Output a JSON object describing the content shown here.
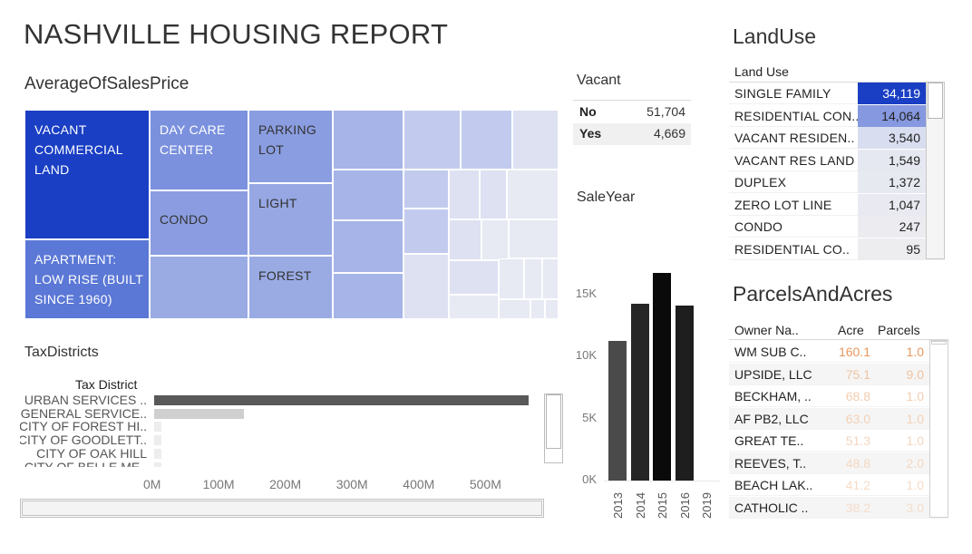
{
  "title": "NASHVILLE HOUSING REPORT",
  "average_sales_price": {
    "title": "AverageOfSalesPrice",
    "labeled_cells": [
      {
        "label": "VACANT\nCOMMERCIAL\nLAND",
        "color": "#1a3fc4",
        "text_color": "#ffffff"
      },
      {
        "label": "APARTMENT:\nLOW RISE (BUILT\nSINCE 1960)",
        "color": "#5b78d6",
        "text_color": "#ffffff"
      },
      {
        "label": "DAY CARE\nCENTER",
        "color": "#7b91de",
        "text_color": "#ffffff"
      },
      {
        "label": "CONDO",
        "color": "#8b9de0",
        "text_color": "#333333"
      },
      {
        "label": "PARKING\nLOT",
        "color": "#8a9de0",
        "text_color": "#333333"
      },
      {
        "label": "LIGHT",
        "color": "#96a7e3",
        "text_color": "#333333"
      },
      {
        "label": "FOREST",
        "color": "#9aabe4",
        "text_color": "#333333"
      }
    ],
    "scale_colors": {
      "dark": "#a6b4e8",
      "mid": "#c2cbee",
      "light": "#dde1f2",
      "lightest": "#e7e9f3"
    }
  },
  "vacant": {
    "title": "Vacant",
    "rows": [
      {
        "label": "No",
        "value": "51,704"
      },
      {
        "label": "Yes",
        "value": "4,669"
      }
    ]
  },
  "sale_year": {
    "title": "SaleYear",
    "y_ticks": [
      "15K",
      "10K",
      "5K",
      "0K"
    ],
    "chart_data": {
      "type": "bar",
      "categories": [
        "2013",
        "2014",
        "2015",
        "2016",
        "2019"
      ],
      "values": [
        11300,
        14250,
        16750,
        14150,
        5
      ],
      "ylim": [
        0,
        18000
      ],
      "colors": [
        "#4a4a4a",
        "#262626",
        "#0a0a0a",
        "#1e1e1e",
        "#555555"
      ]
    }
  },
  "land_use": {
    "title": "LandUse",
    "header": "Land Use",
    "rows": [
      {
        "label": "SINGLE FAMILY",
        "value": "34,119",
        "bg": "#1a3fc4",
        "fg": "#ffffff"
      },
      {
        "label": "RESIDENTIAL CON..",
        "value": "14,064",
        "bg": "#8698df",
        "fg": "#222222"
      },
      {
        "label": "VACANT RESIDEN..",
        "value": "3,540",
        "bg": "#d9ddf0",
        "fg": "#222222"
      },
      {
        "label": "VACANT RES LAND",
        "value": "1,549",
        "bg": "#e6e8f1",
        "fg": "#222222"
      },
      {
        "label": "DUPLEX",
        "value": "1,372",
        "bg": "#e7e9f1",
        "fg": "#222222"
      },
      {
        "label": "ZERO LOT LINE",
        "value": "1,047",
        "bg": "#e9eaf1",
        "fg": "#222222"
      },
      {
        "label": "CONDO",
        "value": "247",
        "bg": "#ececf0",
        "fg": "#222222"
      },
      {
        "label": "RESIDENTIAL CO..",
        "value": "95",
        "bg": "#ededf0",
        "fg": "#222222"
      }
    ]
  },
  "parcels_and_acres": {
    "title": "ParcelsAndAcres",
    "headers": {
      "owner": "Owner Na..",
      "acre": "Acre",
      "parcels": "Parcels"
    },
    "rows": [
      {
        "owner": "WM SUB C..",
        "acre": "160.1",
        "parcels": "1.0",
        "acre_color": "#e8985e",
        "parcels_color": "#e8985e"
      },
      {
        "owner": "UPSIDE, LLC",
        "acre": "75.1",
        "parcels": "9.0",
        "acre_color": "#f0c3a0",
        "parcels_color": "#f0c3a0"
      },
      {
        "owner": "BECKHAM, ..",
        "acre": "68.8",
        "parcels": "1.0",
        "acre_color": "#f2cdb0",
        "parcels_color": "#f2cdb0"
      },
      {
        "owner": "AF PB2, LLC",
        "acre": "63.0",
        "parcels": "1.0",
        "acre_color": "#f3d1b6",
        "parcels_color": "#f3d1b6"
      },
      {
        "owner": "GREAT TE..",
        "acre": "51.3",
        "parcels": "1.0",
        "acre_color": "#f4d6bf",
        "parcels_color": "#f4d6bf"
      },
      {
        "owner": "REEVES, T..",
        "acre": "48.8",
        "parcels": "2.0",
        "acre_color": "#f4d8c2",
        "parcels_color": "#f4d8c2"
      },
      {
        "owner": "BEACH LAK..",
        "acre": "41.2",
        "parcels": "1.0",
        "acre_color": "#f5dcc8",
        "parcels_color": "#f5dcc8"
      },
      {
        "owner": "CATHOLIC ..",
        "acre": "38.2",
        "parcels": "3.0",
        "acre_color": "#f5ddca",
        "parcels_color": "#f5ddca"
      }
    ]
  },
  "tax_districts": {
    "title": "TaxDistricts",
    "header": "Tax District",
    "x_ticks": [
      "0M",
      "100M",
      "200M",
      "300M",
      "400M",
      "500M"
    ],
    "chart_data": {
      "type": "bar",
      "orientation": "horizontal",
      "categories": [
        "URBAN SERVICES ..",
        "GENERAL SERVICE..",
        "CITY OF FOREST HI..",
        "CITY OF GOODLETT..",
        "CITY OF OAK HILL",
        "CITY OF BELLE ME.."
      ],
      "values": [
        562,
        134,
        8,
        7,
        6,
        4
      ],
      "units": "M",
      "xlim": [
        0,
        600
      ],
      "colors": [
        "#595959",
        "#cfcfcf",
        "#ededed",
        "#ededed",
        "#ededed",
        "#ededed"
      ]
    }
  }
}
